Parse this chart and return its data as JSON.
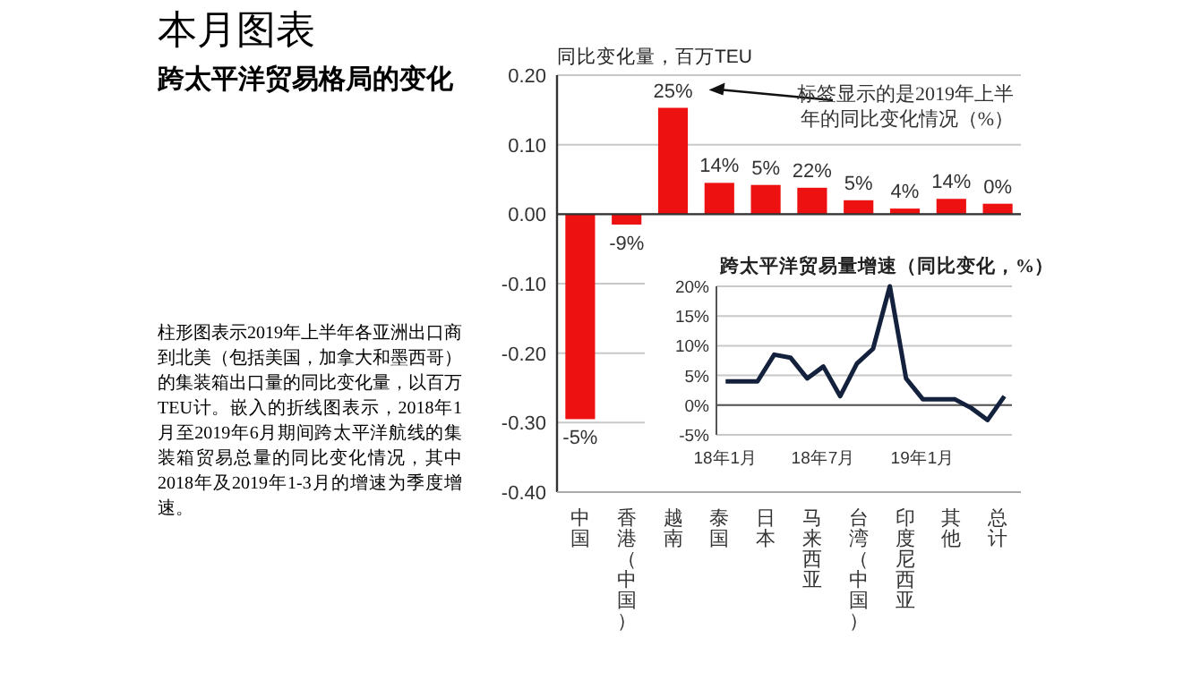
{
  "chart_data": [
    {
      "type": "bar",
      "title": "本月图表",
      "subtitle": "跨太平洋贸易格局的变化",
      "ylabel": "同比变化量，百万TEU",
      "categories": [
        "中国",
        "香港（中国）",
        "越南",
        "泰国",
        "日本",
        "马来西亚",
        "台湾（中国）",
        "印度尼西亚",
        "其他",
        "总计"
      ],
      "values": [
        -0.295,
        -0.015,
        0.153,
        0.045,
        0.042,
        0.038,
        0.02,
        0.008,
        0.022,
        0.015
      ],
      "color": "#ee1111",
      "ylim": [
        -0.4,
        0.2
      ],
      "yticks": [
        {
          "value": -0.4,
          "label": "-0.40"
        },
        {
          "value": -0.3,
          "label": "-0.30"
        },
        {
          "value": -0.2,
          "label": "-0.20"
        },
        {
          "value": -0.1,
          "label": "-0.10"
        },
        {
          "value": 0,
          "label": "0.00"
        },
        {
          "value": 0.1,
          "label": "0.10"
        },
        {
          "value": 0.2,
          "label": "0.20"
        }
      ],
      "grid": "y",
      "annotations": [
        "柱形图表示2019年上半年各亚洲出口商到北美（包括美国，加拿大和墨西哥）的集装箱出口量的同比变化量，以百万TEU计。嵌入的折线图表示，2018年1月至2019年6月期间跨太平洋航线的集装箱贸易总量的同比变化情况，其中2018年及2019年1-3月的增速为季度增速。",
        "标签显示的是2019年上半年的同比变化情况（%）",
        {
          "text": "-5%",
          "x": "中国",
          "y": -0.295
        },
        {
          "text": "-9%",
          "x": "香港（中国）",
          "y": -0.015
        },
        {
          "text": "25%",
          "x": "越南",
          "y": 0.153
        },
        {
          "text": "14%",
          "x": "泰国",
          "y": 0.045
        },
        {
          "text": "5%",
          "x": "日本",
          "y": 0.042
        },
        {
          "text": "22%",
          "x": "马来西亚",
          "y": 0.038
        },
        {
          "text": "5%",
          "x": "台湾（中国）",
          "y": 0.02
        },
        {
          "text": "4%",
          "x": "印度尼西亚",
          "y": 0.008
        },
        {
          "text": "14%",
          "x": "其他",
          "y": 0.022
        },
        {
          "text": "0%",
          "x": "总计",
          "y": 0.015
        }
      ]
    },
    {
      "type": "line",
      "title": "跨太平洋贸易量增速（同比变化，%）",
      "x": [
        "2018-01",
        "2018-02",
        "2018-03",
        "2018-04",
        "2018-05",
        "2018-06",
        "2018-07",
        "2018-08",
        "2018-09",
        "2018-10",
        "2018-11",
        "2018-12",
        "2019-01",
        "2019-02",
        "2019-03",
        "2019-04",
        "2019-05",
        "2019-06"
      ],
      "values": [
        4,
        4,
        4,
        8.5,
        8,
        4.5,
        6.5,
        1.5,
        7,
        9.5,
        20,
        4.5,
        1,
        1,
        1,
        -0.5,
        -2.5,
        1.5
      ],
      "color": "#14213d",
      "xlim": [
        "2017-12-15",
        "2019-06-15"
      ],
      "xticks": [
        {
          "value": "2018-01",
          "label": "18年1月"
        },
        {
          "value": "2018-07",
          "label": "18年7月"
        },
        {
          "value": "2019-01",
          "label": "19年1月"
        }
      ],
      "ylim": [
        -5,
        20
      ],
      "yticks": [
        {
          "value": -5,
          "label": "-5%"
        },
        {
          "value": 0,
          "label": "0%"
        },
        {
          "value": 5,
          "label": "5%"
        },
        {
          "value": 10,
          "label": "10%"
        },
        {
          "value": 15,
          "label": "15%"
        },
        {
          "value": 20,
          "label": "20%"
        }
      ],
      "grid": "y"
    }
  ]
}
